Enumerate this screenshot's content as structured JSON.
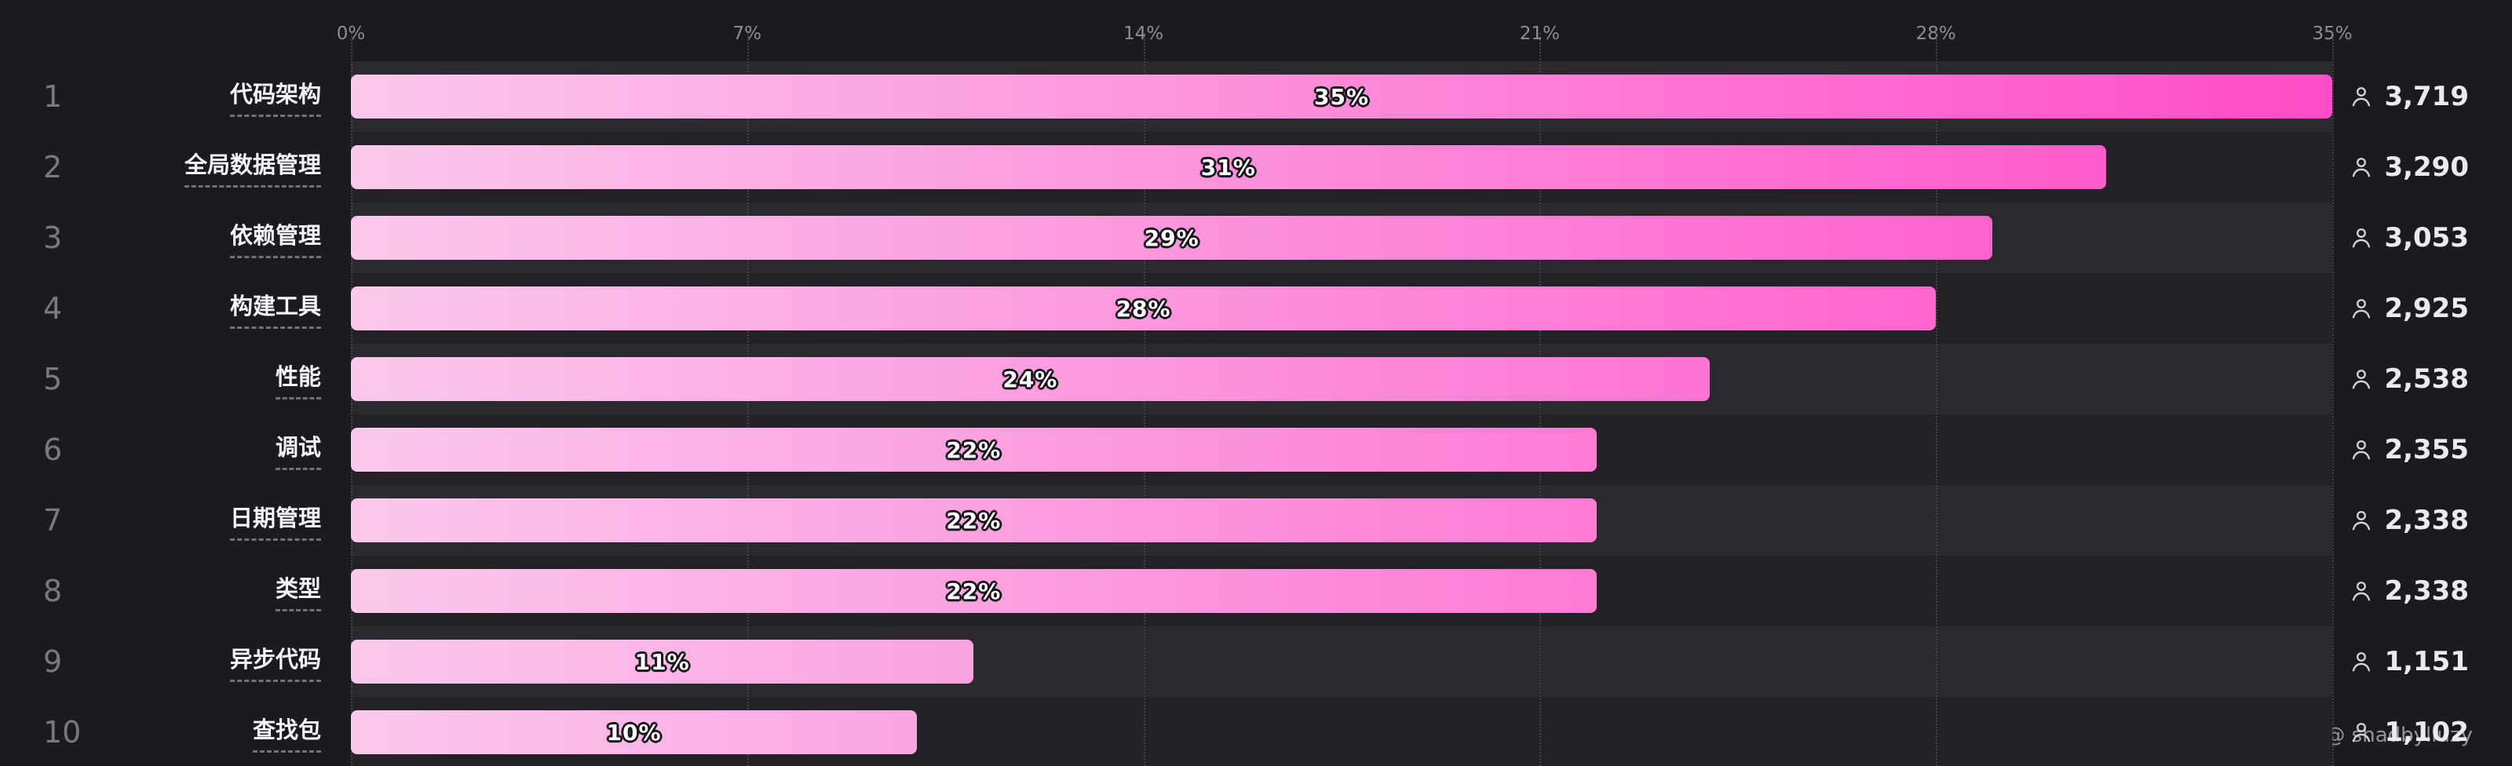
{
  "chart_data": {
    "type": "bar",
    "orientation": "horizontal",
    "title": "",
    "xlabel": "",
    "ylabel": "",
    "xlim": [
      0,
      35
    ],
    "ticks": [
      "0%",
      "7%",
      "14%",
      "21%",
      "28%",
      "35%"
    ],
    "tick_values": [
      0,
      7,
      14,
      21,
      28,
      35
    ],
    "grid": "dotted-vertical",
    "legend": "none",
    "items": [
      {
        "rank": "1",
        "label": "代码架构",
        "value": 35,
        "pct_label": "35%",
        "count": "3,719"
      },
      {
        "rank": "2",
        "label": "全局数据管理",
        "value": 31,
        "pct_label": "31%",
        "count": "3,290"
      },
      {
        "rank": "3",
        "label": "依赖管理",
        "value": 29,
        "pct_label": "29%",
        "count": "3,053"
      },
      {
        "rank": "4",
        "label": "构建工具",
        "value": 28,
        "pct_label": "28%",
        "count": "2,925"
      },
      {
        "rank": "5",
        "label": "性能",
        "value": 24,
        "pct_label": "24%",
        "count": "2,538"
      },
      {
        "rank": "6",
        "label": "调试",
        "value": 22,
        "pct_label": "22%",
        "count": "2,355"
      },
      {
        "rank": "7",
        "label": "日期管理",
        "value": 22,
        "pct_label": "22%",
        "count": "2,338"
      },
      {
        "rank": "8",
        "label": "类型",
        "value": 22,
        "pct_label": "22%",
        "count": "2,338"
      },
      {
        "rank": "9",
        "label": "异步代码",
        "value": 11,
        "pct_label": "11%",
        "count": "1,151"
      },
      {
        "rank": "10",
        "label": "查找包",
        "value": 10,
        "pct_label": "10%",
        "count": "1,102"
      }
    ],
    "colors": {
      "background": "#1d1a1f",
      "row_odd": "#2b2830",
      "row_even": "#232026",
      "bar_gradient_start": "#fbc9ed",
      "bar_gradient_end": "#ff4dc7",
      "axis_text": "#8f8c92",
      "rank_text": "#7b7880",
      "label_text": "#f7f5f8",
      "count_text": "#eceaee",
      "gridline": "#4b4851"
    }
  },
  "icons": {
    "count_icon": "person-icon"
  },
  "watermark": "掘金技术社区 @ shadbyliuzy"
}
